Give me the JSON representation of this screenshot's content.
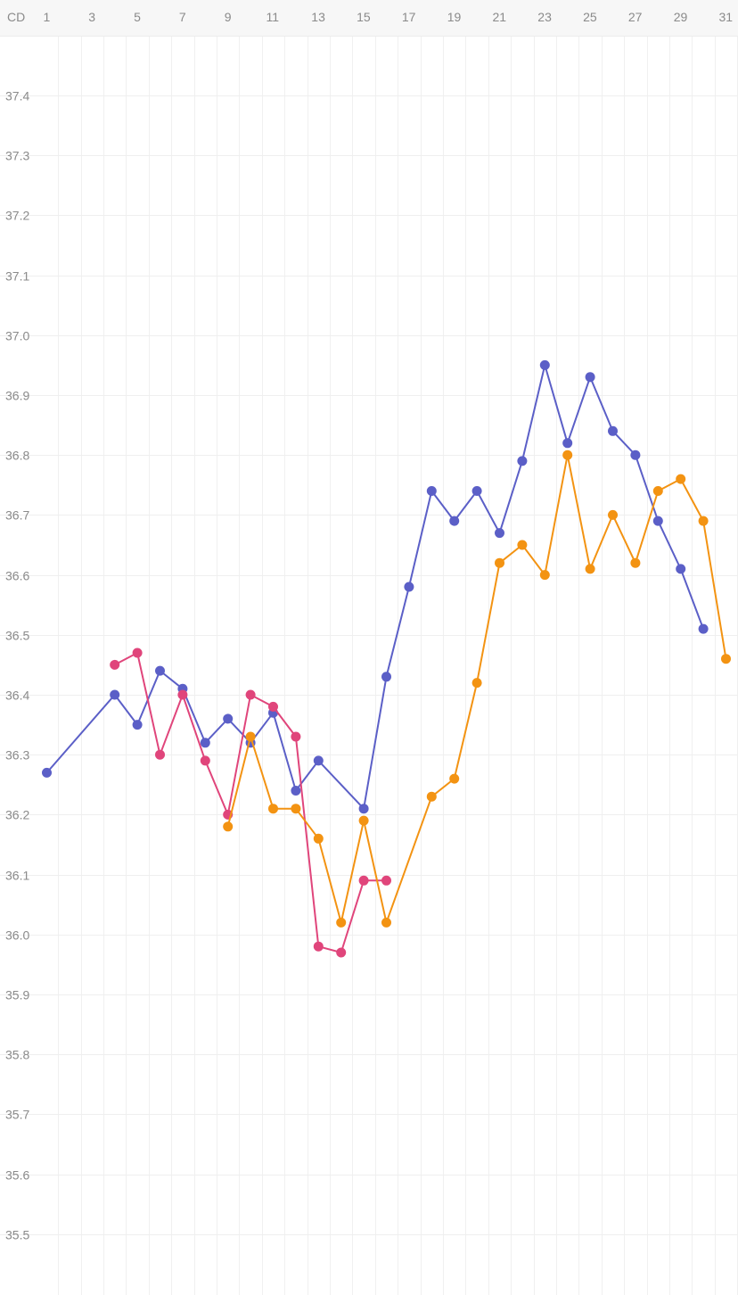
{
  "header": {
    "cd_label": "CD",
    "day_labels": [
      "1",
      "3",
      "5",
      "7",
      "9",
      "11",
      "13",
      "15",
      "17",
      "19",
      "21",
      "23",
      "25",
      "27",
      "29",
      "31"
    ]
  },
  "chart_data": {
    "type": "line",
    "xlabel": "",
    "ylabel": "",
    "x_range": [
      1,
      31
    ],
    "ylim": [
      35.4,
      37.5
    ],
    "y_ticks": [
      37.4,
      37.3,
      37.2,
      37.1,
      37.0,
      36.9,
      36.8,
      36.7,
      36.6,
      36.5,
      36.4,
      36.3,
      36.2,
      36.1,
      36.0,
      35.9,
      35.8,
      35.7,
      35.6,
      35.5
    ],
    "y_tick_labels": [
      "37.4",
      "37.3",
      "37.2",
      "37.1",
      "37.0",
      "36.9",
      "36.8",
      "36.7",
      "36.6",
      "36.5",
      "36.4",
      "36.3",
      "36.2",
      "36.1",
      "36.0",
      "35.9",
      "35.8",
      "35.7",
      "35.6",
      "35.5"
    ],
    "grid": true,
    "legend": "none",
    "series": [
      {
        "color": "#5b5fc7",
        "points": [
          [
            1,
            36.27
          ],
          [
            4,
            36.4
          ],
          [
            5,
            36.35
          ],
          [
            6,
            36.44
          ],
          [
            7,
            36.41
          ],
          [
            8,
            36.32
          ],
          [
            9,
            36.36
          ],
          [
            10,
            36.32
          ],
          [
            11,
            36.37
          ],
          [
            12,
            36.24
          ],
          [
            13,
            36.29
          ],
          [
            15,
            36.21
          ],
          [
            16,
            36.43
          ],
          [
            17,
            36.58
          ],
          [
            18,
            36.74
          ],
          [
            19,
            36.69
          ],
          [
            20,
            36.74
          ],
          [
            21,
            36.67
          ],
          [
            22,
            36.79
          ],
          [
            23,
            36.95
          ],
          [
            24,
            36.82
          ],
          [
            25,
            36.93
          ],
          [
            26,
            36.84
          ],
          [
            27,
            36.8
          ],
          [
            28,
            36.69
          ],
          [
            29,
            36.61
          ],
          [
            30,
            36.51
          ]
        ]
      },
      {
        "color": "#e0457b",
        "points": [
          [
            4,
            36.45
          ],
          [
            5,
            36.47
          ],
          [
            6,
            36.3
          ],
          [
            7,
            36.4
          ],
          [
            8,
            36.29
          ],
          [
            9,
            36.2
          ],
          [
            10,
            36.4
          ],
          [
            11,
            36.38
          ],
          [
            12,
            36.33
          ],
          [
            13,
            35.98
          ],
          [
            14,
            35.97
          ],
          [
            15,
            36.09
          ],
          [
            16,
            36.09
          ]
        ]
      },
      {
        "color": "#f39312",
        "points": [
          [
            9,
            36.18
          ],
          [
            10,
            36.33
          ],
          [
            11,
            36.21
          ],
          [
            12,
            36.21
          ],
          [
            13,
            36.16
          ],
          [
            14,
            36.02
          ],
          [
            15,
            36.19
          ],
          [
            16,
            36.02
          ],
          [
            18,
            36.23
          ],
          [
            19,
            36.26
          ],
          [
            20,
            36.42
          ],
          [
            21,
            36.62
          ],
          [
            22,
            36.65
          ],
          [
            23,
            36.6
          ],
          [
            24,
            36.8
          ],
          [
            25,
            36.61
          ],
          [
            26,
            36.7
          ],
          [
            27,
            36.62
          ],
          [
            28,
            36.74
          ],
          [
            29,
            36.76
          ],
          [
            30,
            36.69
          ],
          [
            31,
            36.46
          ]
        ]
      }
    ]
  }
}
